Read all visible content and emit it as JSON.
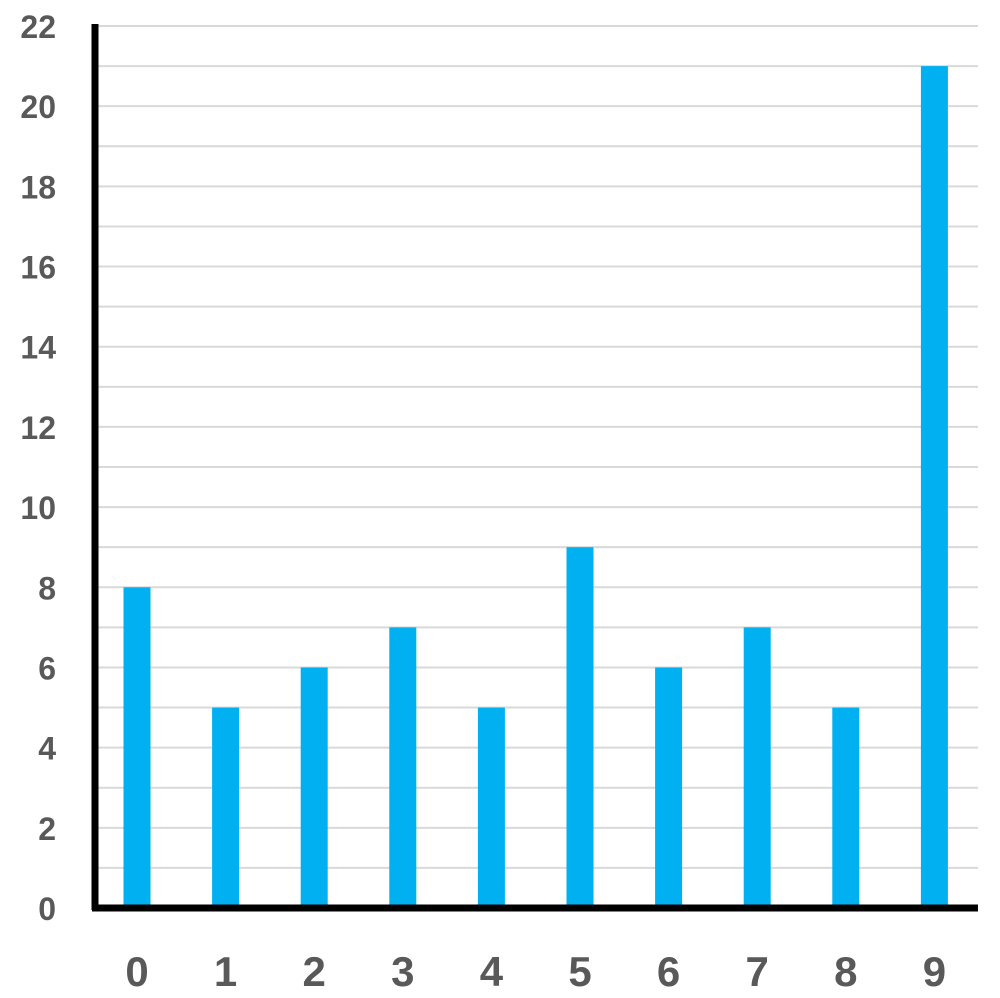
{
  "chart_data": {
    "type": "bar",
    "categories": [
      "0",
      "1",
      "2",
      "3",
      "4",
      "5",
      "6",
      "7",
      "8",
      "9"
    ],
    "values": [
      8,
      5,
      6,
      7,
      5,
      9,
      6,
      7,
      5,
      21
    ],
    "ylim": [
      0,
      22
    ],
    "y_ticks": [
      "0",
      "2",
      "4",
      "6",
      "8",
      "10",
      "12",
      "14",
      "16",
      "18",
      "20",
      "22"
    ],
    "grid": true,
    "grid_step": 1,
    "legend": "none",
    "bar_color": "#00B0F0",
    "axis_color": "#000000",
    "grid_color": "#D9D9D9",
    "label_color": "#595959"
  }
}
